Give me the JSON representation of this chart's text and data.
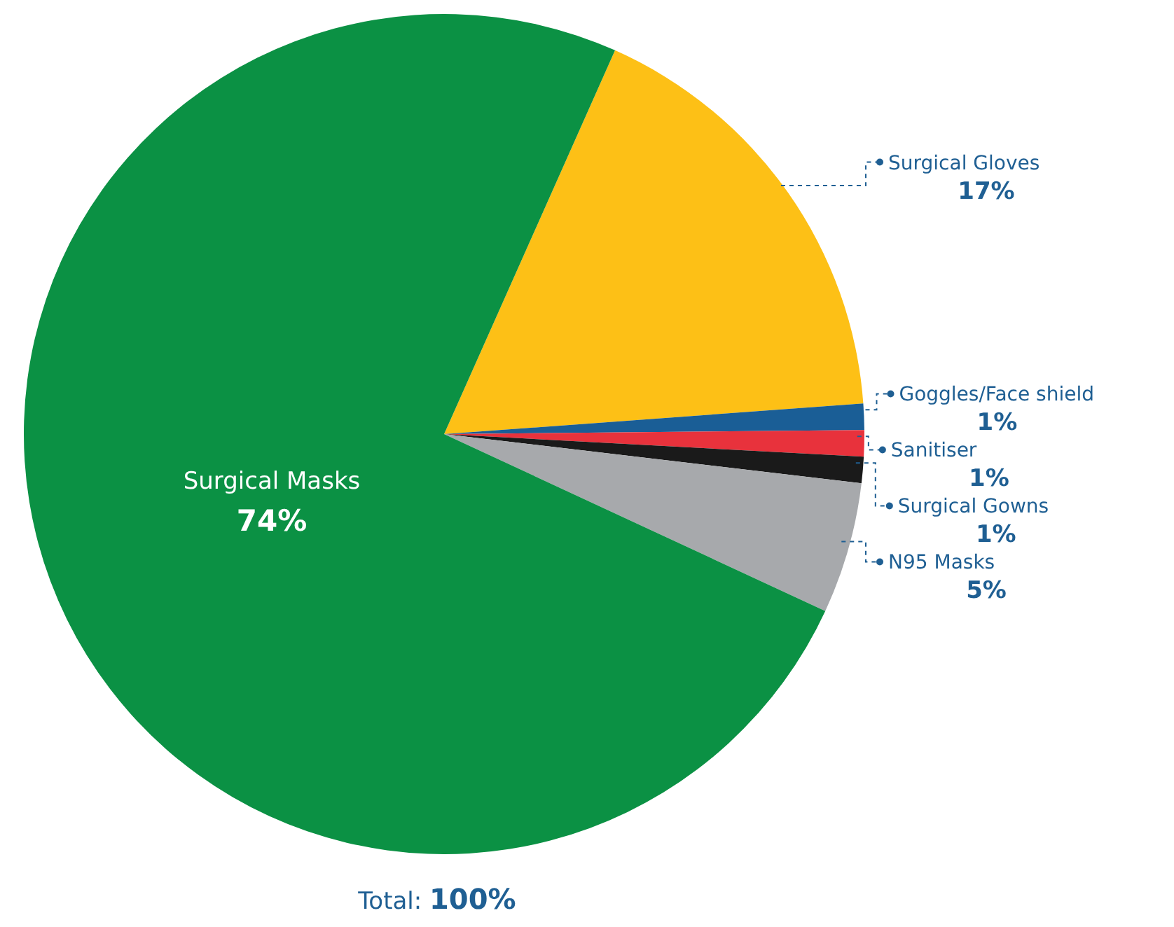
{
  "chart_data": {
    "type": "pie",
    "categories": [
      "Surgical Gloves",
      "Goggles/Face shield",
      "Sanitiser",
      "Surgical Gowns",
      "N95 Masks",
      "Surgical Masks"
    ],
    "values": [
      17,
      1,
      1,
      1,
      5,
      74
    ],
    "colors": [
      "#fdc016",
      "#1a5e96",
      "#e8323c",
      "#1a1a1a",
      "#a7a9ac",
      "#0b9144"
    ],
    "value_labels": [
      "17%",
      "1%",
      "1%",
      "1%",
      "5%",
      "74%"
    ],
    "annotations": [
      "Total: 100%"
    ]
  }
}
